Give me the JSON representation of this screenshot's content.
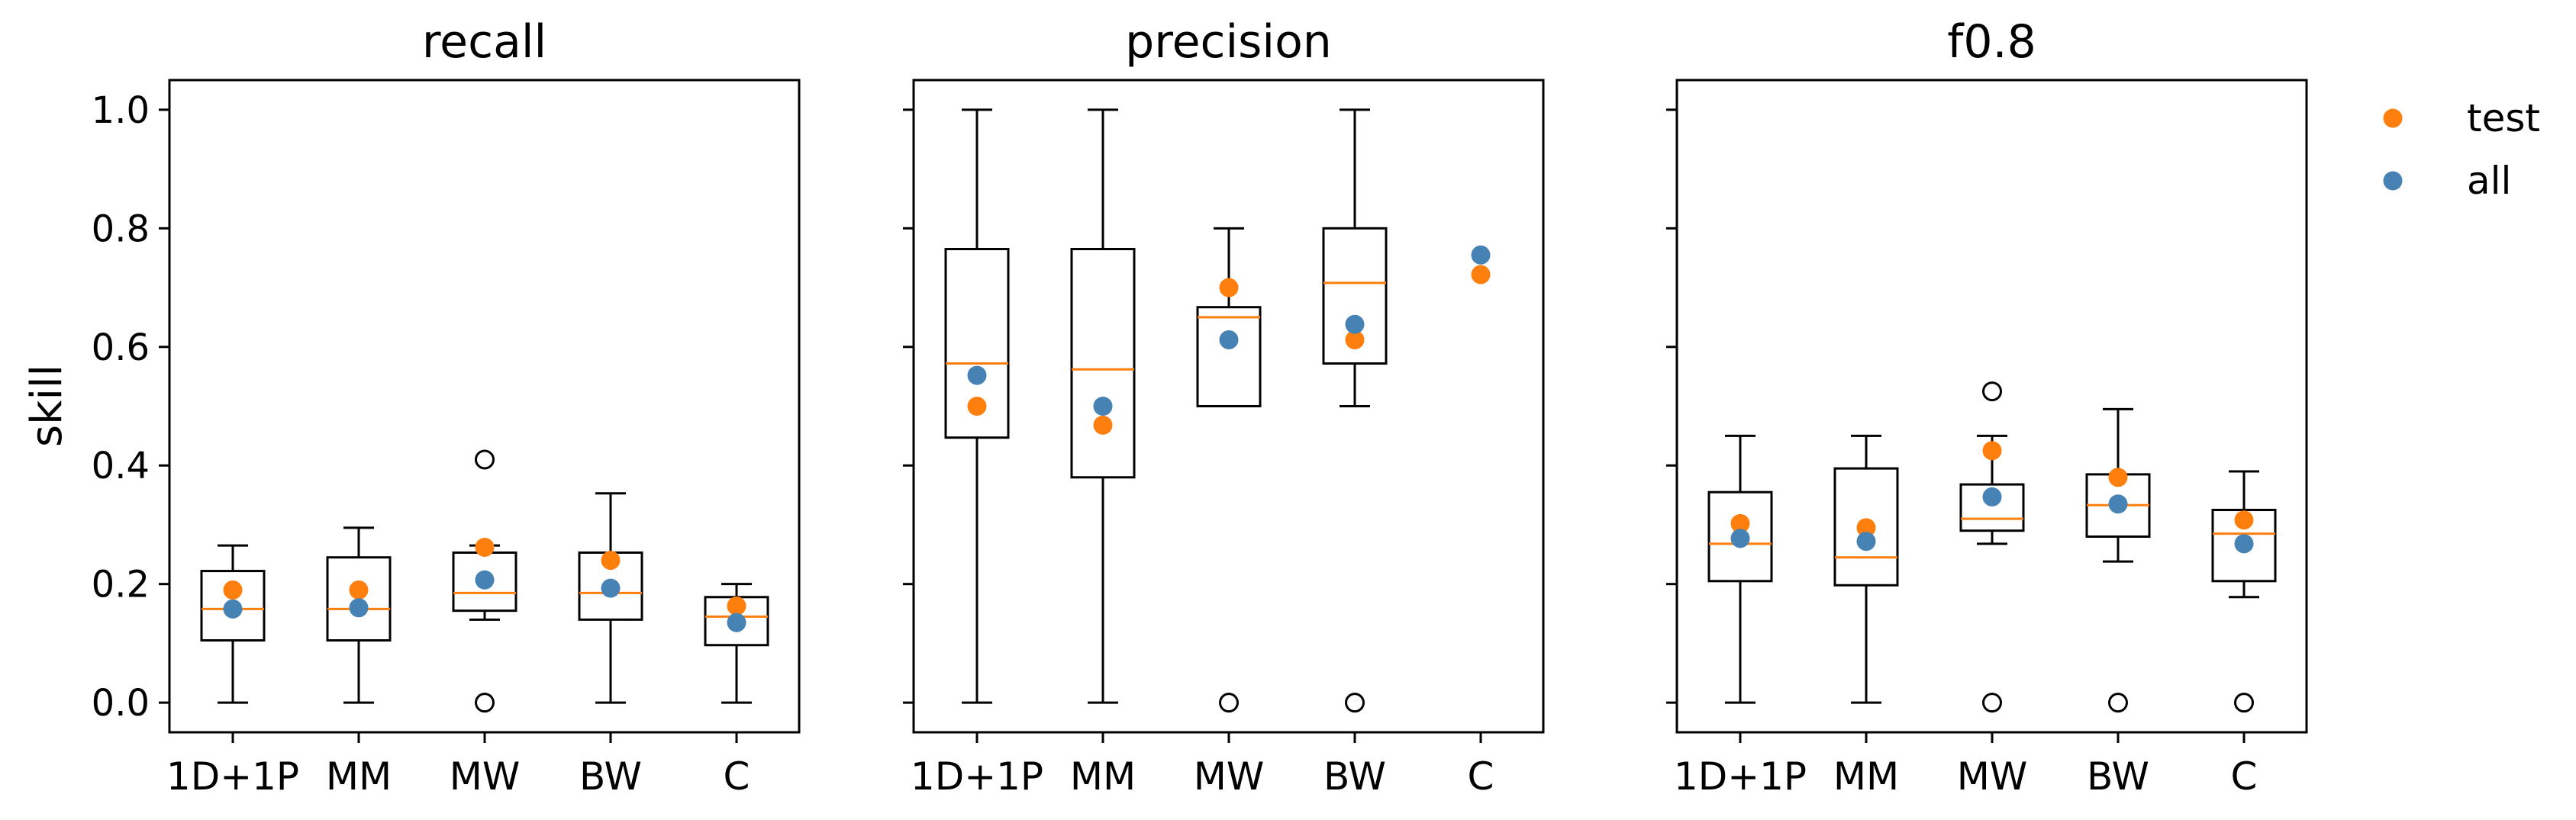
{
  "chart_data": {
    "type": "box",
    "ylabel": "skill",
    "ylim": [
      -0.05,
      1.05
    ],
    "yticks": [
      "0.0",
      "0.2",
      "0.4",
      "0.6",
      "0.8",
      "1.0"
    ],
    "categories": [
      "1D+1P",
      "MM",
      "MW",
      "BW",
      "C"
    ],
    "legend": {
      "position": "top-right outside",
      "entries": [
        {
          "label": "test",
          "color": "#ff7f0e"
        },
        {
          "label": "all",
          "color": "#4682b4"
        }
      ]
    },
    "colors": {
      "box": "#000000",
      "median": "#ff7f0e",
      "test": "#ff7f0e",
      "all": "#4682b4"
    },
    "panels": [
      {
        "title": "recall",
        "boxes": [
          {
            "category": "1D+1P",
            "whislo": 0.0,
            "q1": 0.105,
            "med": 0.158,
            "q3": 0.222,
            "whishi": 0.265,
            "fliers": []
          },
          {
            "category": "MM",
            "whislo": 0.0,
            "q1": 0.105,
            "med": 0.158,
            "q3": 0.245,
            "whishi": 0.295,
            "fliers": []
          },
          {
            "category": "MW",
            "whislo": 0.14,
            "q1": 0.155,
            "med": 0.185,
            "q3": 0.253,
            "whishi": 0.265,
            "fliers": [
              0.41,
              0.0
            ]
          },
          {
            "category": "BW",
            "whislo": 0.0,
            "q1": 0.14,
            "med": 0.185,
            "q3": 0.253,
            "whishi": 0.353,
            "fliers": []
          },
          {
            "category": "C",
            "whislo": 0.0,
            "q1": 0.097,
            "med": 0.145,
            "q3": 0.178,
            "whishi": 0.2,
            "fliers": []
          }
        ],
        "test": [
          0.19,
          0.19,
          0.262,
          0.24,
          0.163
        ],
        "all": [
          0.158,
          0.16,
          0.207,
          0.193,
          0.135
        ]
      },
      {
        "title": "precision",
        "boxes": [
          {
            "category": "1D+1P",
            "whislo": 0.0,
            "q1": 0.447,
            "med": 0.572,
            "q3": 0.765,
            "whishi": 1.0,
            "fliers": []
          },
          {
            "category": "MM",
            "whislo": 0.0,
            "q1": 0.38,
            "med": 0.562,
            "q3": 0.765,
            "whishi": 1.0,
            "fliers": []
          },
          {
            "category": "MW",
            "whislo": 0.5,
            "q1": 0.5,
            "med": 0.65,
            "q3": 0.667,
            "whishi": 0.8,
            "fliers": [
              0.0
            ]
          },
          {
            "category": "BW",
            "whislo": 0.5,
            "q1": 0.572,
            "med": 0.708,
            "q3": 0.8,
            "whishi": 1.0,
            "fliers": [
              0.0
            ]
          },
          {
            "category": "C",
            "whislo": null,
            "q1": null,
            "med": null,
            "q3": null,
            "whishi": null,
            "fliers": []
          }
        ],
        "test": [
          0.5,
          0.468,
          0.7,
          0.612,
          0.722
        ],
        "all": [
          0.552,
          0.5,
          0.612,
          0.638,
          0.755
        ]
      },
      {
        "title": "f0.8",
        "boxes": [
          {
            "category": "1D+1P",
            "whislo": 0.0,
            "q1": 0.205,
            "med": 0.268,
            "q3": 0.355,
            "whishi": 0.45,
            "fliers": []
          },
          {
            "category": "MM",
            "whislo": 0.0,
            "q1": 0.198,
            "med": 0.245,
            "q3": 0.395,
            "whishi": 0.45,
            "fliers": []
          },
          {
            "category": "MW",
            "whislo": 0.268,
            "q1": 0.29,
            "med": 0.31,
            "q3": 0.368,
            "whishi": 0.45,
            "fliers": [
              0.525,
              0.0
            ]
          },
          {
            "category": "BW",
            "whislo": 0.238,
            "q1": 0.28,
            "med": 0.333,
            "q3": 0.385,
            "whishi": 0.495,
            "fliers": [
              0.0
            ]
          },
          {
            "category": "C",
            "whislo": 0.178,
            "q1": 0.205,
            "med": 0.285,
            "q3": 0.325,
            "whishi": 0.39,
            "fliers": [
              0.0
            ]
          }
        ],
        "test": [
          0.302,
          0.295,
          0.425,
          0.38,
          0.308
        ],
        "all": [
          0.277,
          0.272,
          0.347,
          0.335,
          0.268
        ]
      }
    ]
  }
}
